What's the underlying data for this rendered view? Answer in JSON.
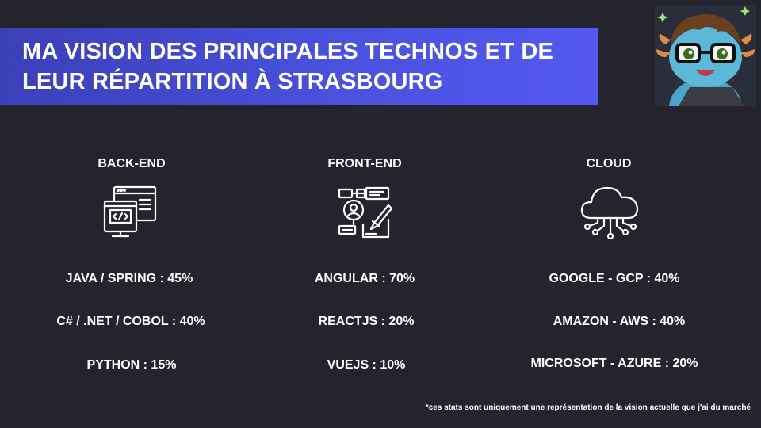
{
  "header": {
    "title_line1": "MA VISION DES PRINCIPALES TECHNOS ET DE",
    "title_line2": "LEUR RÉPARTITION À STRASBOURG",
    "gradient_start": "#3b3fb8",
    "gradient_end": "#5458f0"
  },
  "avatar": {
    "icon": "cartoon-avatar-with-glasses"
  },
  "columns": [
    {
      "title": "BACK-END",
      "icon": "code-window-icon",
      "items": [
        "JAVA / SPRING : 45%",
        "C# / .NET / COBOL : 40%",
        "PYTHON : 15%"
      ]
    },
    {
      "title": "FRONT-END",
      "icon": "design-tools-icon",
      "items": [
        "ANGULAR : 70%",
        "REACTJS : 20%",
        "VUEJS : 10%"
      ]
    },
    {
      "title": "CLOUD",
      "icon": "cloud-network-icon",
      "items": [
        "GOOGLE - GCP : 40%",
        "AMAZON - AWS : 40%",
        "MICROSOFT - AZURE : 20%"
      ]
    }
  ],
  "footnote": "*ces stats sont uniquement une représentation de la vision actuelle que j'ai du marché",
  "colors": {
    "background": "#24242e",
    "text": "#ffffff"
  }
}
